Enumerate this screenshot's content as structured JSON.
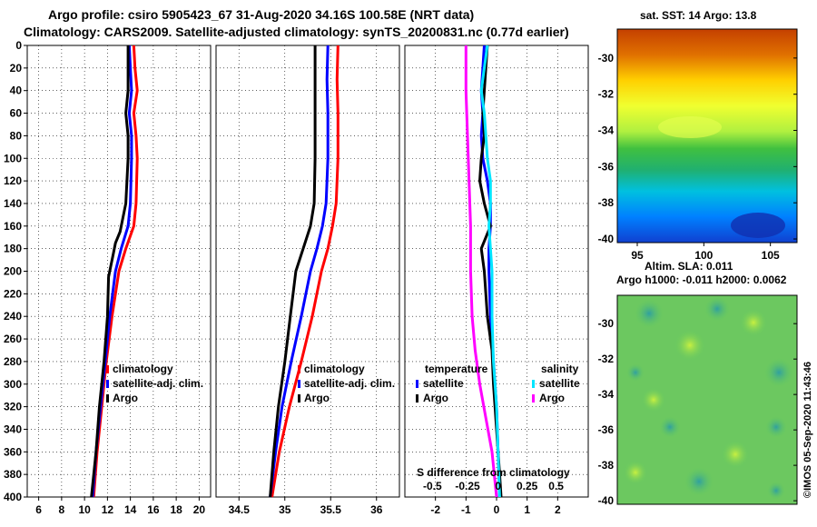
{
  "header": {
    "line1": "Argo profile: csiro 5905423_67 31-Aug-2020 34.16S 100.58E (NRT data)",
    "line2": "Climatology: CARS2009. Satellite-adjusted climatology: synTS_20200831.nc (0.77d earlier)"
  },
  "colors": {
    "climatology": "#ff0000",
    "satellite": "#0000ff",
    "argo": "#000000",
    "sal_satellite": "#00e5ff",
    "sal_argo": "#ff00ff"
  },
  "chart_data": [
    {
      "type": "line",
      "name": "temperature-profile",
      "xlim": [
        5,
        21
      ],
      "ylim": [
        0,
        400
      ],
      "x_ticks": [
        "6",
        "8",
        "10",
        "12",
        "14",
        "16",
        "18",
        "20"
      ],
      "x_tick_values": [
        6,
        8,
        10,
        12,
        14,
        16,
        18,
        20
      ],
      "y_ticks": [
        "0",
        "20",
        "40",
        "60",
        "80",
        "100",
        "120",
        "140",
        "160",
        "180",
        "200",
        "220",
        "240",
        "260",
        "280",
        "300",
        "320",
        "340",
        "360",
        "380",
        "400"
      ],
      "y_tick_values": [
        0,
        20,
        40,
        60,
        80,
        100,
        120,
        140,
        160,
        180,
        200,
        220,
        240,
        260,
        280,
        300,
        320,
        340,
        360,
        380,
        400
      ],
      "legend": [
        "climatology",
        "satellite-adj. clim.",
        "Argo"
      ],
      "series": [
        {
          "name": "climatology",
          "color_key": "climatology",
          "points": [
            [
              14.3,
              0
            ],
            [
              14.4,
              20
            ],
            [
              14.6,
              40
            ],
            [
              14.3,
              60
            ],
            [
              14.5,
              80
            ],
            [
              14.6,
              100
            ],
            [
              14.5,
              140
            ],
            [
              14.3,
              160
            ],
            [
              13.6,
              180
            ],
            [
              13.0,
              200
            ],
            [
              12.4,
              240
            ],
            [
              11.9,
              280
            ],
            [
              11.5,
              320
            ],
            [
              11.1,
              360
            ],
            [
              10.8,
              400
            ]
          ]
        },
        {
          "name": "satellite-adj. clim.",
          "color_key": "satellite",
          "points": [
            [
              13.9,
              0
            ],
            [
              14.0,
              20
            ],
            [
              14.1,
              40
            ],
            [
              13.9,
              60
            ],
            [
              14.1,
              80
            ],
            [
              14.1,
              100
            ],
            [
              14.0,
              140
            ],
            [
              13.8,
              160
            ],
            [
              13.2,
              180
            ],
            [
              12.7,
              200
            ],
            [
              12.2,
              240
            ],
            [
              11.8,
              280
            ],
            [
              11.4,
              320
            ],
            [
              11.0,
              360
            ],
            [
              10.7,
              400
            ]
          ]
        },
        {
          "name": "Argo",
          "color_key": "argo",
          "points": [
            [
              13.8,
              0
            ],
            [
              13.8,
              20
            ],
            [
              13.8,
              40
            ],
            [
              13.6,
              60
            ],
            [
              13.8,
              80
            ],
            [
              13.8,
              100
            ],
            [
              13.6,
              140
            ],
            [
              13.1,
              165
            ],
            [
              12.7,
              175
            ],
            [
              12.5,
              185
            ],
            [
              12.1,
              205
            ],
            [
              12.0,
              240
            ],
            [
              11.7,
              280
            ],
            [
              11.3,
              320
            ],
            [
              11.0,
              360
            ],
            [
              10.6,
              400
            ]
          ]
        }
      ]
    },
    {
      "type": "line",
      "name": "salinity-profile",
      "xlim": [
        34.25,
        36.25
      ],
      "ylim": [
        0,
        400
      ],
      "x_ticks": [
        "34.5",
        "35",
        "35.5",
        "36"
      ],
      "x_tick_values": [
        34.5,
        35,
        35.5,
        36
      ],
      "legend": [
        "climatology",
        "satellite-adj. clim.",
        "Argo"
      ],
      "series": [
        {
          "name": "climatology",
          "color_key": "climatology",
          "points": [
            [
              35.58,
              0
            ],
            [
              35.57,
              30
            ],
            [
              35.58,
              60
            ],
            [
              35.58,
              100
            ],
            [
              35.56,
              140
            ],
            [
              35.52,
              160
            ],
            [
              35.47,
              180
            ],
            [
              35.4,
              200
            ],
            [
              35.3,
              240
            ],
            [
              35.18,
              280
            ],
            [
              35.05,
              320
            ],
            [
              34.94,
              360
            ],
            [
              34.86,
              400
            ]
          ]
        },
        {
          "name": "satellite-adj. clim.",
          "color_key": "satellite",
          "points": [
            [
              35.47,
              0
            ],
            [
              35.46,
              30
            ],
            [
              35.47,
              60
            ],
            [
              35.47,
              100
            ],
            [
              35.45,
              140
            ],
            [
              35.41,
              160
            ],
            [
              35.35,
              180
            ],
            [
              35.28,
              200
            ],
            [
              35.18,
              240
            ],
            [
              35.07,
              280
            ],
            [
              34.97,
              320
            ],
            [
              34.9,
              360
            ],
            [
              34.84,
              400
            ]
          ]
        },
        {
          "name": "Argo",
          "color_key": "argo",
          "points": [
            [
              35.33,
              0
            ],
            [
              35.33,
              30
            ],
            [
              35.33,
              60
            ],
            [
              35.33,
              100
            ],
            [
              35.32,
              140
            ],
            [
              35.28,
              160
            ],
            [
              35.2,
              180
            ],
            [
              35.12,
              200
            ],
            [
              35.06,
              240
            ],
            [
              35.0,
              280
            ],
            [
              34.93,
              320
            ],
            [
              34.88,
              360
            ],
            [
              34.84,
              400
            ]
          ]
        }
      ]
    },
    {
      "type": "line",
      "name": "difference-from-climatology",
      "xlim": [
        -3,
        3
      ],
      "ylim": [
        0,
        400
      ],
      "x_ticks": [
        "-2",
        "-1",
        "0",
        "1",
        "2"
      ],
      "x_tick_values": [
        -2,
        -1,
        0,
        1,
        2
      ],
      "top_axis_label": "S difference from climatology",
      "top_ticks": [
        "-0.5",
        "-0.25",
        "0",
        "0.25",
        "0.5"
      ],
      "legend_temperature_title": "temperature",
      "legend_salinity_title": "salinity",
      "legend_temperature": [
        "satellite",
        "Argo"
      ],
      "legend_salinity": [
        "satellite",
        "Argo"
      ],
      "series": [
        {
          "name": "temperature satellite",
          "color_key": "satellite",
          "points": [
            [
              -0.4,
              0
            ],
            [
              -0.45,
              20
            ],
            [
              -0.5,
              40
            ],
            [
              -0.45,
              60
            ],
            [
              -0.5,
              80
            ],
            [
              -0.45,
              100
            ],
            [
              -0.3,
              120
            ],
            [
              -0.2,
              140
            ],
            [
              -0.2,
              160
            ],
            [
              -0.25,
              180
            ],
            [
              -0.25,
              200
            ],
            [
              -0.2,
              240
            ],
            [
              -0.1,
              280
            ],
            [
              0.0,
              320
            ],
            [
              0.05,
              360
            ],
            [
              0.1,
              400
            ]
          ]
        },
        {
          "name": "temperature Argo",
          "color_key": "argo",
          "points": [
            [
              -0.3,
              0
            ],
            [
              -0.35,
              20
            ],
            [
              -0.4,
              40
            ],
            [
              -0.45,
              60
            ],
            [
              -0.4,
              80
            ],
            [
              -0.5,
              100
            ],
            [
              -0.55,
              120
            ],
            [
              -0.4,
              140
            ],
            [
              -0.2,
              160
            ],
            [
              -0.5,
              180
            ],
            [
              -0.4,
              200
            ],
            [
              -0.3,
              240
            ],
            [
              -0.15,
              270
            ],
            [
              -0.1,
              300
            ],
            [
              0.0,
              340
            ],
            [
              0.1,
              380
            ],
            [
              0.15,
              400
            ]
          ]
        },
        {
          "name": "salinity satellite",
          "color_key": "sal_satellite",
          "points": [
            [
              -0.3,
              0
            ],
            [
              -0.4,
              20
            ],
            [
              -0.5,
              40
            ],
            [
              -0.4,
              60
            ],
            [
              -0.35,
              80
            ],
            [
              -0.3,
              100
            ],
            [
              -0.2,
              120
            ],
            [
              -0.2,
              140
            ],
            [
              -0.25,
              160
            ],
            [
              -0.2,
              180
            ],
            [
              -0.15,
              200
            ],
            [
              -0.15,
              240
            ],
            [
              -0.1,
              280
            ],
            [
              0.0,
              320
            ],
            [
              0.05,
              360
            ],
            [
              0.1,
              400
            ]
          ]
        },
        {
          "name": "salinity Argo",
          "color_key": "sal_argo",
          "points": [
            [
              -1.0,
              0
            ],
            [
              -1.0,
              40
            ],
            [
              -0.95,
              80
            ],
            [
              -0.9,
              120
            ],
            [
              -0.85,
              160
            ],
            [
              -0.85,
              200
            ],
            [
              -0.8,
              240
            ],
            [
              -0.7,
              270
            ],
            [
              -0.55,
              300
            ],
            [
              -0.35,
              330
            ],
            [
              -0.15,
              360
            ],
            [
              0.0,
              400
            ]
          ]
        }
      ]
    },
    {
      "type": "heatmap",
      "name": "sst-map",
      "title": "sat. SST: 14 Argo: 13.8",
      "x_ticks": [
        "95",
        "100",
        "105"
      ],
      "x_tick_values": [
        95,
        100,
        105
      ],
      "xlim": [
        93.5,
        107.0
      ],
      "ylim": [
        -40.2,
        -28.4
      ],
      "y_ticks": [
        "-30",
        "-32",
        "-34",
        "-36",
        "-38",
        "-40"
      ],
      "y_tick_values": [
        -30,
        -32,
        -34,
        -36,
        -38,
        -40
      ]
    },
    {
      "type": "heatmap",
      "name": "sla-map",
      "title": "Altim. SLA: 0.011",
      "subtitle": "Argo h1000: -0.011 h2000: 0.0062",
      "xlim": [
        93.5,
        107.0
      ],
      "ylim": [
        -40.2,
        -28.4
      ],
      "y_ticks": [
        "-30",
        "-32",
        "-34",
        "-36",
        "-38",
        "-40"
      ],
      "y_tick_values": [
        -30,
        -32,
        -34,
        -36,
        -38,
        -40
      ]
    }
  ],
  "footer": {
    "credit": "©IMOS 05-Sep-2020 11:43:46"
  }
}
